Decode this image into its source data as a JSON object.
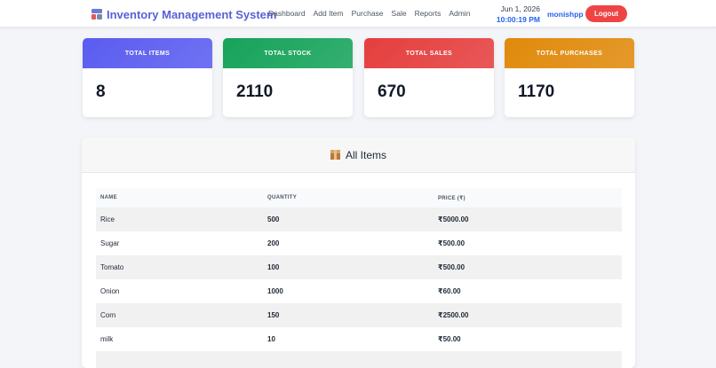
{
  "header": {
    "brand": "Inventory Management System",
    "nav": [
      "Dashboard",
      "Add Item",
      "Purchase",
      "Sale",
      "Reports",
      "Admin"
    ],
    "date": "Jun 1, 2026",
    "time": "10:00:19 PM",
    "user": "monishpp",
    "logout_label": "Logout"
  },
  "stats": [
    {
      "label": "TOTAL ITEMS",
      "value": "8",
      "color": "#5a5cf0"
    },
    {
      "label": "TOTAL STOCK",
      "value": "2110",
      "color": "#16a35a"
    },
    {
      "label": "TOTAL SALES",
      "value": "670",
      "color": "#e53e3e"
    },
    {
      "label": "TOTAL PURCHASES",
      "value": "1170",
      "color": "#e08a0b"
    }
  ],
  "items_panel": {
    "title": "All Items",
    "columns": [
      "NAME",
      "QUANTITY",
      "PRICE (₹)"
    ],
    "rows": [
      {
        "name": "Rice",
        "quantity": "500",
        "price": "₹5000.00"
      },
      {
        "name": "Sugar",
        "quantity": "200",
        "price": "₹500.00"
      },
      {
        "name": "Tomato",
        "quantity": "100",
        "price": "₹500.00"
      },
      {
        "name": "Onion",
        "quantity": "1000",
        "price": "₹60.00"
      },
      {
        "name": "Corn",
        "quantity": "150",
        "price": "₹2500.00"
      },
      {
        "name": "milk",
        "quantity": "10",
        "price": "₹50.00"
      }
    ]
  },
  "colors": {
    "brand": "#5662d8",
    "accent": "#2563eb",
    "logout": "#ef4444"
  }
}
